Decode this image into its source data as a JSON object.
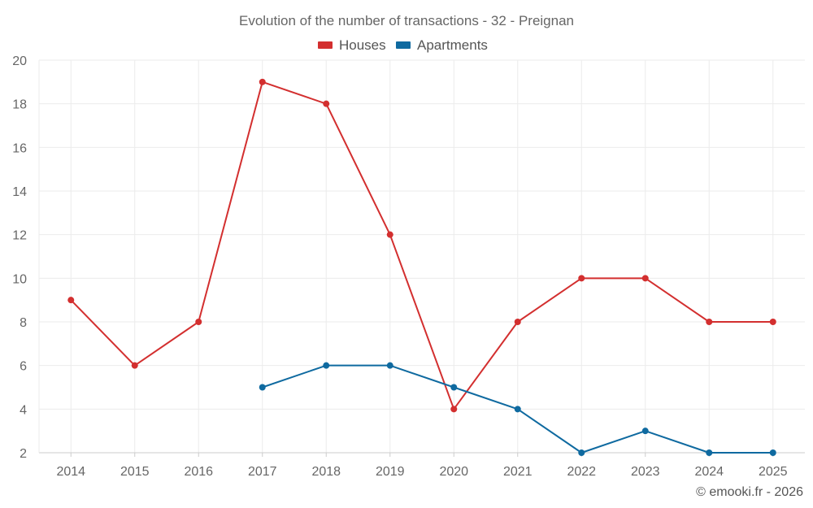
{
  "chart_data": {
    "type": "line",
    "title": "Evolution of the number of transactions - 32 - Preignan",
    "categories": [
      "2014",
      "2015",
      "2016",
      "2017",
      "2018",
      "2019",
      "2020",
      "2021",
      "2022",
      "2023",
      "2024",
      "2025"
    ],
    "series": [
      {
        "name": "Houses",
        "color": "#d32f2f",
        "values": [
          9,
          6,
          8,
          19,
          18,
          12,
          4,
          8,
          10,
          10,
          8,
          8
        ]
      },
      {
        "name": "Apartments",
        "color": "#0f6aa0",
        "values": [
          null,
          null,
          null,
          5,
          6,
          6,
          5,
          4,
          2,
          3,
          2,
          2
        ]
      }
    ],
    "ylim": [
      2,
      20
    ],
    "yticks": [
      2,
      4,
      6,
      8,
      10,
      12,
      14,
      16,
      18,
      20
    ],
    "xlabel": "",
    "ylabel": "",
    "grid": true,
    "legend_position": "top-center"
  },
  "credit": "© emooki.fr - 2026"
}
